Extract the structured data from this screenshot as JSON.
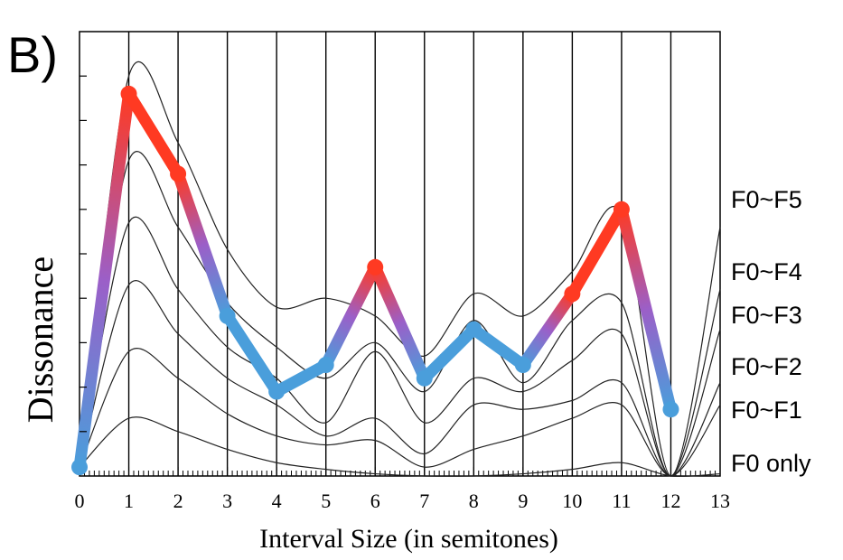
{
  "panel_label": "B)",
  "chart_data": {
    "type": "line",
    "title": "",
    "xlabel": "Interval Size (in semitones)",
    "ylabel": "Dissonance",
    "xlim": [
      0,
      13
    ],
    "ylim": [
      0,
      10
    ],
    "x_ticks": [
      "0",
      "1",
      "2",
      "3",
      "4",
      "5",
      "6",
      "7",
      "8",
      "9",
      "10",
      "11",
      "12",
      "13"
    ],
    "grid": "vertical lines at each semitone",
    "curve_labels": [
      "F0~F5",
      "F0~F4",
      "F0~F3",
      "F0~F2",
      "F0~F1",
      "F0 only"
    ],
    "curves": [
      {
        "name": "F0~F5",
        "x": [
          0,
          1,
          2,
          3,
          4,
          5,
          6,
          7,
          8,
          9,
          10,
          11,
          12,
          13
        ],
        "y": [
          0.2,
          9.0,
          7.5,
          5.1,
          3.8,
          4.0,
          3.6,
          2.7,
          4.1,
          3.6,
          4.6,
          5.9,
          0.0,
          5.6
        ]
      },
      {
        "name": "F0~F4",
        "x": [
          0,
          1,
          2,
          3,
          4,
          5,
          6,
          7,
          8,
          9,
          10,
          11,
          12,
          13
        ],
        "y": [
          0.2,
          7.1,
          5.6,
          3.9,
          2.9,
          2.2,
          3.0,
          1.9,
          3.5,
          2.1,
          3.5,
          3.9,
          0.0,
          4.2
        ]
      },
      {
        "name": "F0~F3",
        "x": [
          0,
          1,
          2,
          3,
          4,
          5,
          6,
          7,
          8,
          9,
          10,
          11,
          12,
          13
        ],
        "y": [
          0.2,
          5.7,
          4.2,
          2.9,
          2.2,
          1.2,
          2.8,
          1.2,
          2.2,
          1.9,
          2.6,
          3.2,
          0.0,
          3.3
        ]
      },
      {
        "name": "F0~F2",
        "x": [
          0,
          1,
          2,
          3,
          4,
          5,
          6,
          7,
          8,
          9,
          10,
          11,
          12,
          13
        ],
        "y": [
          0.2,
          4.3,
          3.2,
          2.2,
          1.6,
          0.9,
          1.3,
          0.5,
          1.6,
          1.5,
          1.7,
          2.1,
          0.0,
          2.1
        ]
      },
      {
        "name": "F0~F1",
        "x": [
          0,
          1,
          2,
          3,
          4,
          5,
          6,
          7,
          8,
          9,
          10,
          11,
          12,
          13
        ],
        "y": [
          0.2,
          2.8,
          2.2,
          1.4,
          0.9,
          0.7,
          0.8,
          0.2,
          0.6,
          0.9,
          1.3,
          1.6,
          0.0,
          1.6
        ]
      },
      {
        "name": "F0 only",
        "x": [
          0,
          1,
          2,
          3,
          4,
          5,
          6,
          7,
          8,
          9,
          10,
          11,
          12,
          13
        ],
        "y": [
          0.2,
          1.3,
          1.0,
          0.6,
          0.3,
          0.15,
          0.05,
          0.0,
          0.0,
          0.05,
          0.15,
          0.3,
          0.0,
          0.05
        ]
      }
    ],
    "highlight_series": {
      "x": [
        0,
        1,
        2,
        3,
        4,
        5,
        6,
        7,
        8,
        9,
        10,
        11,
        12
      ],
      "y": [
        0.2,
        8.6,
        6.8,
        3.6,
        1.9,
        2.5,
        4.7,
        2.2,
        3.3,
        2.5,
        4.1,
        6.0,
        1.5
      ],
      "colors": {
        "high": "#ff3a22",
        "low": "#4a9edb",
        "mid": "#9b5fc8"
      }
    }
  }
}
